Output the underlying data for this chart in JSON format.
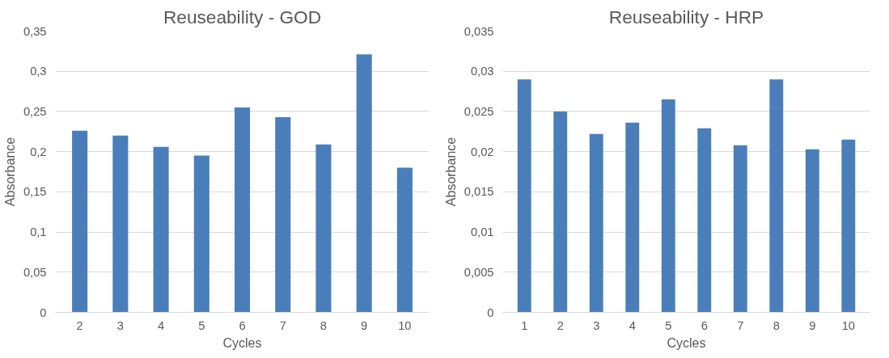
{
  "chart_data": [
    {
      "type": "bar",
      "title": "Reuseability - GOD",
      "xlabel": "Cycles",
      "ylabel": "Absorbance",
      "categories": [
        "2",
        "3",
        "4",
        "5",
        "6",
        "7",
        "8",
        "9",
        "10"
      ],
      "values": [
        0.226,
        0.22,
        0.206,
        0.195,
        0.255,
        0.243,
        0.209,
        0.321,
        0.18
      ],
      "color": "#4a7ebb",
      "ylim": [
        0,
        0.35
      ],
      "yticks": [
        0,
        {
          "value": 0.05,
          "label": "0,05"
        },
        {
          "value": 0.1,
          "label": "0,1"
        },
        {
          "value": 0.15,
          "label": "0,15"
        },
        {
          "value": 0.2,
          "label": "0,2"
        },
        {
          "value": 0.25,
          "label": "0,25"
        },
        {
          "value": 0.3,
          "label": "0,3"
        },
        {
          "value": 0.35,
          "label": "0,35"
        }
      ],
      "grid": "y"
    },
    {
      "type": "bar",
      "title": "Reuseability - HRP",
      "xlabel": "Cycles",
      "ylabel": "Absorbance",
      "categories": [
        "1",
        "2",
        "3",
        "4",
        "5",
        "6",
        "7",
        "8",
        "9",
        "10"
      ],
      "values": [
        0.029,
        0.025,
        0.0222,
        0.0236,
        0.0265,
        0.0229,
        0.0208,
        0.029,
        0.0203,
        0.0215
      ],
      "color": "#4a7ebb",
      "ylim": [
        0,
        0.035
      ],
      "yticks": [
        0,
        {
          "value": 0.005,
          "label": "0,005"
        },
        {
          "value": 0.01,
          "label": "0,01"
        },
        {
          "value": 0.015,
          "label": "0,015"
        },
        {
          "value": 0.02,
          "label": "0,02"
        },
        {
          "value": 0.025,
          "label": "0,025"
        },
        {
          "value": 0.03,
          "label": "0,03"
        },
        {
          "value": 0.035,
          "label": "0,035"
        }
      ],
      "grid": "y"
    }
  ]
}
